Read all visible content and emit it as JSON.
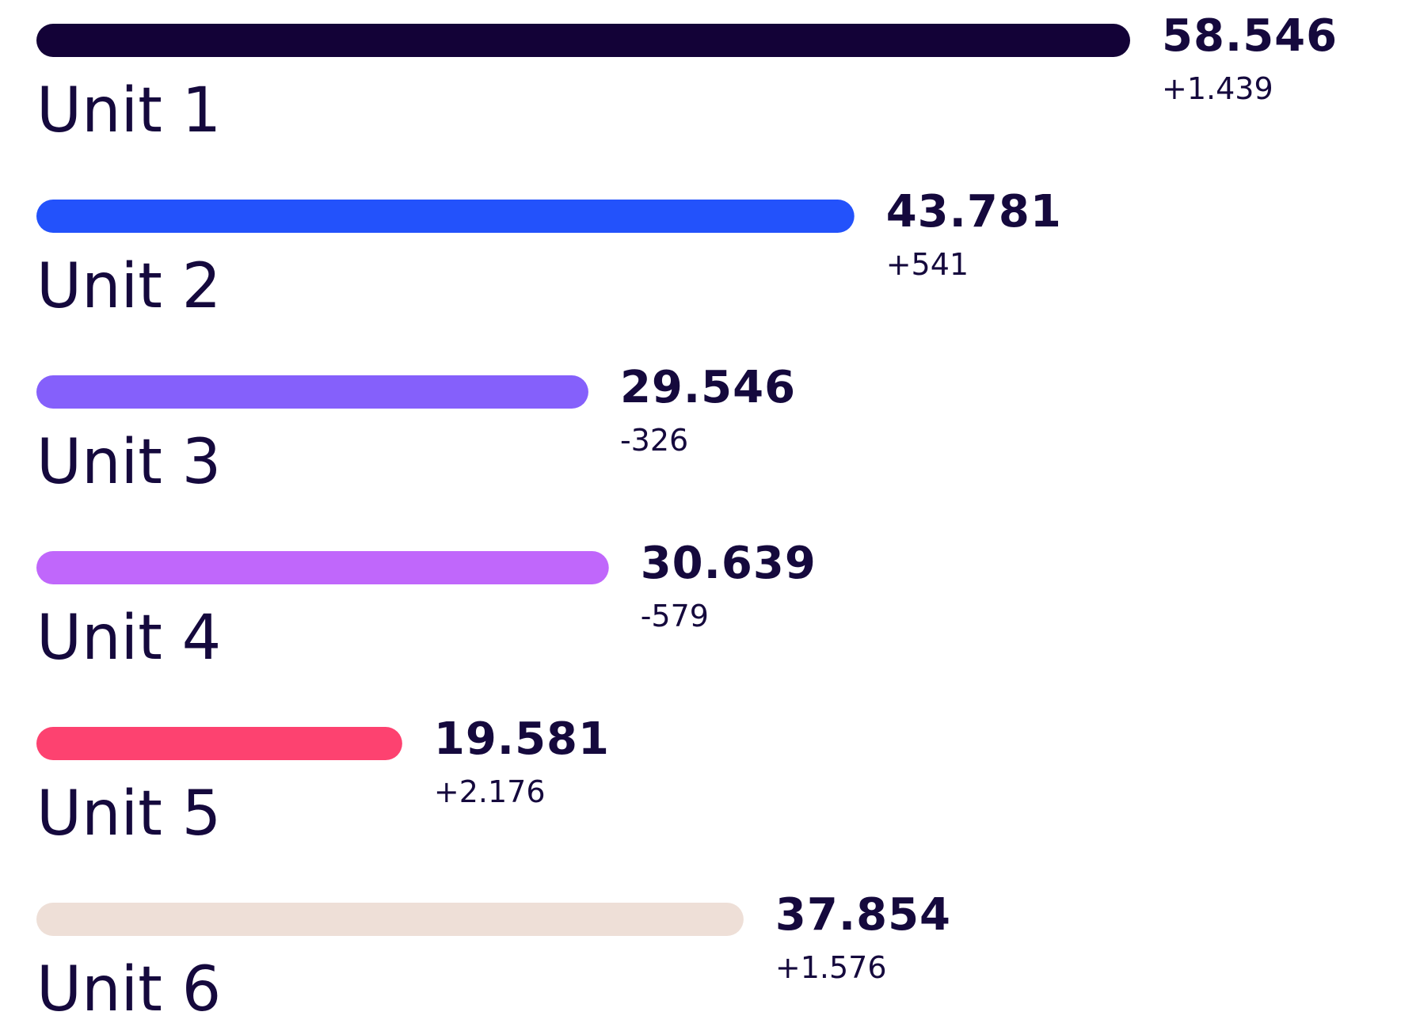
{
  "chart_data": {
    "type": "bar",
    "orientation": "horizontal",
    "categories": [
      "Unit 1",
      "Unit 2",
      "Unit 3",
      "Unit 4",
      "Unit 5",
      "Unit 6"
    ],
    "values": [
      58546,
      43781,
      29546,
      30639,
      19581,
      37854
    ],
    "value_labels": [
      "58.546",
      "43.781",
      "29.546",
      "30.639",
      "19.581",
      "37.854"
    ],
    "change_labels": [
      "+1.439",
      "+541",
      "-326",
      "-579",
      "+2.176",
      "+1.576"
    ],
    "colors": [
      "#130237",
      "#2352fb",
      "#8560fb",
      "#c067fb",
      "#fd4270",
      "#eedfd7"
    ]
  }
}
